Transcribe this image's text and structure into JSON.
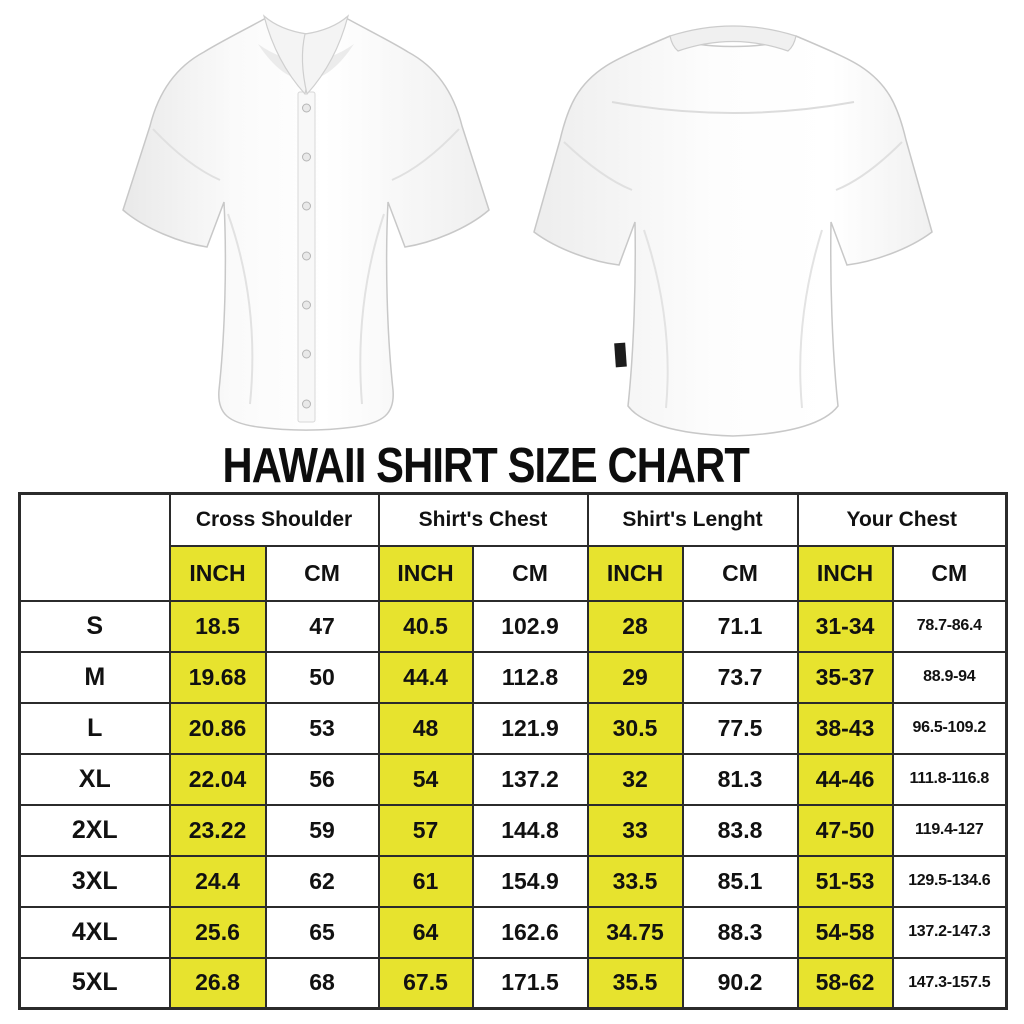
{
  "title": "HAWAII SHIRT SIZE CHART",
  "colors": {
    "highlight_yellow": "#e7e32e",
    "table_border": "#2b2b2b",
    "title_text": "#0d0d0d"
  },
  "chart_data": {
    "type": "table",
    "title": "HAWAII SHIRT SIZE CHART",
    "column_groups": [
      {
        "label": "Cross Shoulder",
        "units": [
          "INCH",
          "CM"
        ]
      },
      {
        "label": "Shirt's Chest",
        "units": [
          "INCH",
          "CM"
        ]
      },
      {
        "label": "Shirt's Lenght",
        "units": [
          "INCH",
          "CM"
        ]
      },
      {
        "label": "Your Chest",
        "units": [
          "INCH",
          "CM"
        ]
      }
    ],
    "unit_headers": [
      "INCH",
      "CM",
      "INCH",
      "CM",
      "INCH",
      "CM",
      "INCH",
      "CM"
    ],
    "rows": [
      {
        "size": "S",
        "values": [
          "18.5",
          "47",
          "40.5",
          "102.9",
          "28",
          "71.1",
          "31-34",
          "78.7-86.4"
        ]
      },
      {
        "size": "M",
        "values": [
          "19.68",
          "50",
          "44.4",
          "112.8",
          "29",
          "73.7",
          "35-37",
          "88.9-94"
        ]
      },
      {
        "size": "L",
        "values": [
          "20.86",
          "53",
          "48",
          "121.9",
          "30.5",
          "77.5",
          "38-43",
          "96.5-109.2"
        ]
      },
      {
        "size": "XL",
        "values": [
          "22.04",
          "56",
          "54",
          "137.2",
          "32",
          "81.3",
          "44-46",
          "111.8-116.8"
        ]
      },
      {
        "size": "2XL",
        "values": [
          "23.22",
          "59",
          "57",
          "144.8",
          "33",
          "83.8",
          "47-50",
          "119.4-127"
        ]
      },
      {
        "size": "3XL",
        "values": [
          "24.4",
          "62",
          "61",
          "154.9",
          "33.5",
          "85.1",
          "51-53",
          "129.5-134.6"
        ]
      },
      {
        "size": "4XL",
        "values": [
          "25.6",
          "65",
          "64",
          "162.6",
          "34.75",
          "88.3",
          "54-58",
          "137.2-147.3"
        ]
      },
      {
        "size": "5XL",
        "values": [
          "26.8",
          "68",
          "67.5",
          "171.5",
          "35.5",
          "90.2",
          "58-62",
          "147.3-157.5"
        ]
      }
    ]
  }
}
